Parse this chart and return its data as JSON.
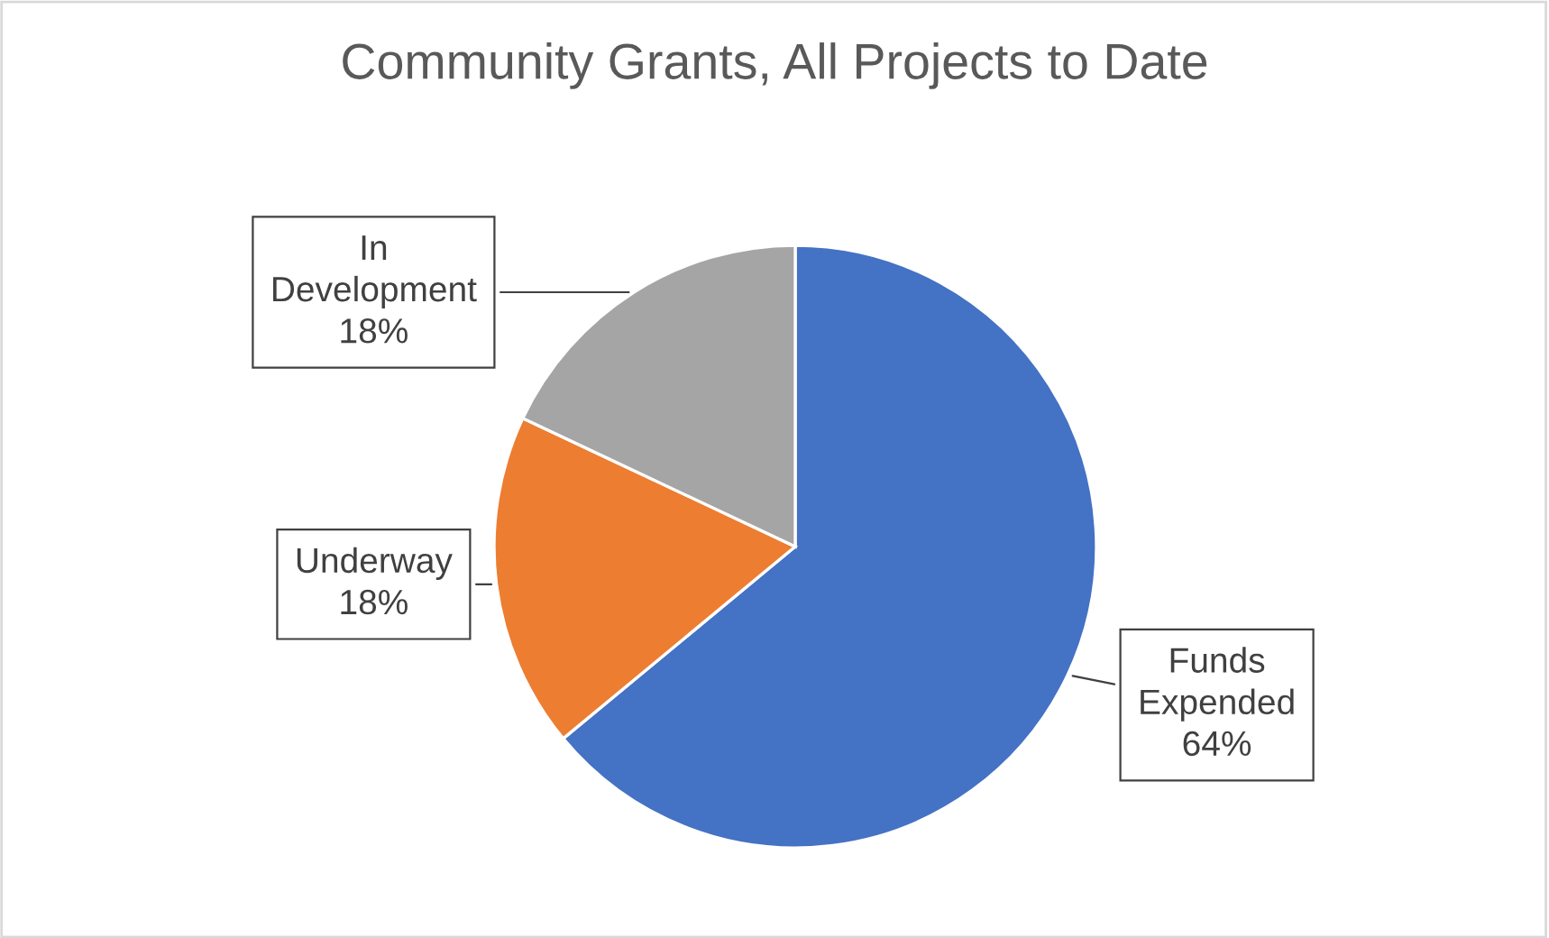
{
  "chart_data": {
    "type": "pie",
    "title": "Community Grants, All Projects to Date",
    "categories": [
      "Funds Expended",
      "Underway",
      "In Development"
    ],
    "values": [
      64,
      18,
      18
    ],
    "value_labels": [
      "64%",
      "18%",
      "18%"
    ],
    "colors": [
      "#4472c4",
      "#ed7d31",
      "#a5a5a5"
    ],
    "legend": false
  }
}
